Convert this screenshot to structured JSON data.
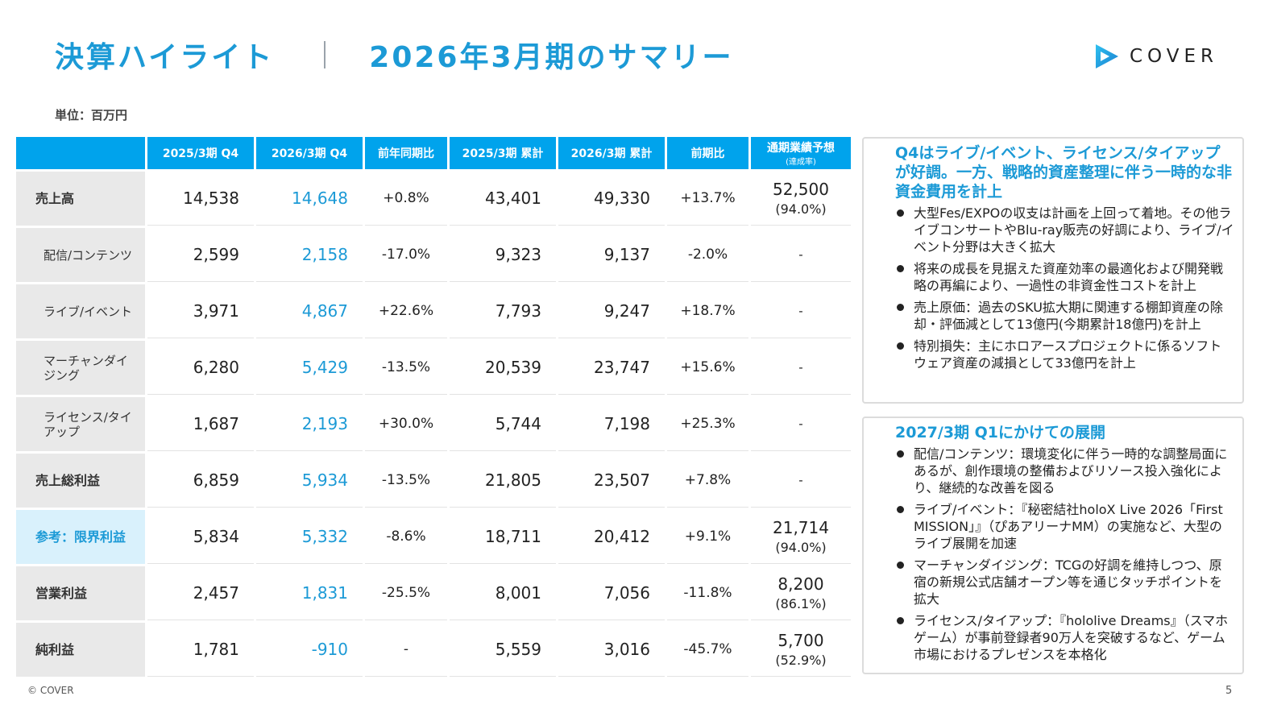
{
  "header": {
    "title_left": "決算ハイライト",
    "title_right": "2026年3月期のサマリー",
    "logo_text": "COVER",
    "unit": "単位：百万円"
  },
  "table": {
    "columns": [
      "2025/3期 Q4",
      "2026/3期 Q4",
      "前年同期比",
      "2025/3期 累計",
      "2026/3期 累計",
      "前期比",
      "通期業績予想",
      "(達成率)"
    ],
    "rows": [
      {
        "label": "売上高",
        "q4_prev": "14,538",
        "q4_cur": "14,648",
        "yoy": "+0.8%",
        "cum_prev": "43,401",
        "cum_cur": "49,330",
        "cum_yoy": "+13.7%",
        "forecast": "52,500",
        "rate": "(94.0%)"
      },
      {
        "label": "配信/コンテンツ",
        "q4_prev": "2,599",
        "q4_cur": "2,158",
        "yoy": "-17.0%",
        "cum_prev": "9,323",
        "cum_cur": "9,137",
        "cum_yoy": "-2.0%",
        "forecast": "-",
        "rate": ""
      },
      {
        "label": "ライブ/イベント",
        "q4_prev": "3,971",
        "q4_cur": "4,867",
        "yoy": "+22.6%",
        "cum_prev": "7,793",
        "cum_cur": "9,247",
        "cum_yoy": "+18.7%",
        "forecast": "-",
        "rate": ""
      },
      {
        "label": "マーチャンダイジング",
        "q4_prev": "6,280",
        "q4_cur": "5,429",
        "yoy": "-13.5%",
        "cum_prev": "20,539",
        "cum_cur": "23,747",
        "cum_yoy": "+15.6%",
        "forecast": "-",
        "rate": ""
      },
      {
        "label": "ライセンス/タイアップ",
        "q4_prev": "1,687",
        "q4_cur": "2,193",
        "yoy": "+30.0%",
        "cum_prev": "5,744",
        "cum_cur": "7,198",
        "cum_yoy": "+25.3%",
        "forecast": "-",
        "rate": ""
      },
      {
        "label": "売上総利益",
        "q4_prev": "6,859",
        "q4_cur": "5,934",
        "yoy": "-13.5%",
        "cum_prev": "21,805",
        "cum_cur": "23,507",
        "cum_yoy": "+7.8%",
        "forecast": "-",
        "rate": ""
      },
      {
        "label": "参考：限界利益",
        "q4_prev": "5,834",
        "q4_cur": "5,332",
        "yoy": "-8.6%",
        "cum_prev": "18,711",
        "cum_cur": "20,412",
        "cum_yoy": "+9.1%",
        "forecast": "21,714",
        "rate": "(94.0%)"
      },
      {
        "label": "営業利益",
        "q4_prev": "2,457",
        "q4_cur": "1,831",
        "yoy": "-25.5%",
        "cum_prev": "8,001",
        "cum_cur": "7,056",
        "cum_yoy": "-11.8%",
        "forecast": "8,200",
        "rate": "(86.1%)"
      },
      {
        "label": "純利益",
        "q4_prev": "1,781",
        "q4_cur": "-910",
        "yoy": "-",
        "cum_prev": "5,559",
        "cum_cur": "3,016",
        "cum_yoy": "-45.7%",
        "forecast": "5,700",
        "rate": "(52.9%)"
      }
    ]
  },
  "box1": {
    "heading": "Q4はライブ/イベント、ライセンス/タイアップが好調。一方、戦略的資産整理に伴う一時的な非資金費用を計上",
    "bullets": [
      "大型Fes/EXPOの収支は計画を上回って着地。その他ライブコンサートやBlu-ray販売の好調により、ライブ/イベント分野は大きく拡大",
      "将来の成長を見据えた資産効率の最適化および開発戦略の再編により、一過性の非資金性コストを計上",
      "売上原価：過去のSKU拡大期に関連する棚卸資産の除却・評価減として13億円(今期累計18億円)を計上",
      "特別損失：主にホロアースプロジェクトに係るソフトウェア資産の減損として33億円を計上"
    ]
  },
  "box2": {
    "heading": "2027/3期 Q1にかけての展開",
    "bullets": [
      "配信/コンテンツ：環境変化に伴う一時的な調整局面にあるが、創作環境の整備およびリソース投入強化により、継続的な改善を図る",
      "ライブ/イベント：『秘密結社holoX Live 2026「First MISSION」』（ぴあアリーナMM）の実施など、大型のライブ展開を加速",
      "マーチャンダイジング：TCGの好調を維持しつつ、原宿の新規公式店舗オープン等を通じタッチポイントを拡大",
      "ライセンス/タイアップ：『hololive Dreams』（スマホゲーム）が事前登録者90万人を突破するなど、ゲーム市場におけるプレゼンスを本格化"
    ]
  },
  "footer": {
    "copyright": "© COVER",
    "page": "5"
  },
  "colors": {
    "accent": "#1c9ad6",
    "header_bg": "#00a3ec",
    "label_bg": "#e9e9e9",
    "ref_bg": "#d9f1fc"
  }
}
